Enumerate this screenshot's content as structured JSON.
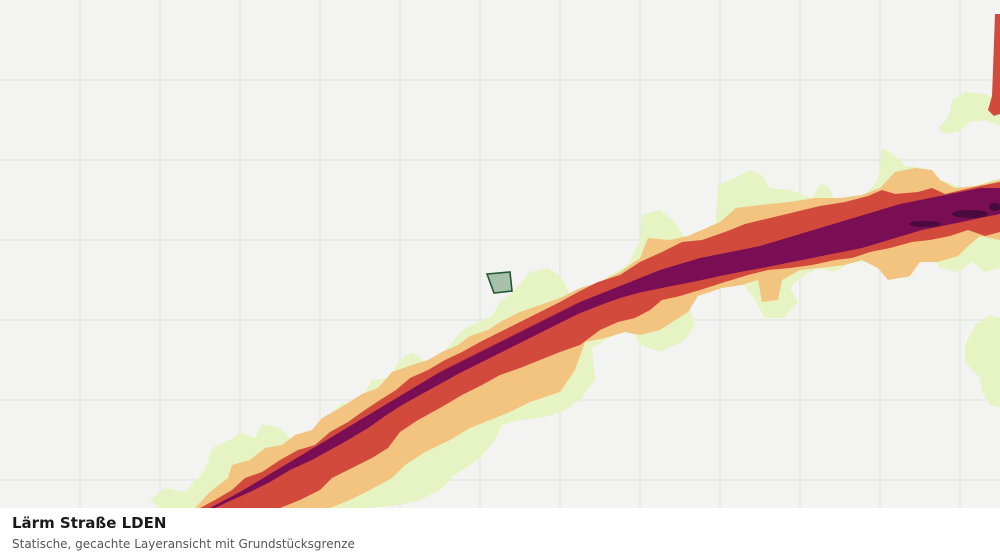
{
  "map": {
    "title": "Lärm Straße LDEN",
    "subtitle": "Statische, gecachte Layeransicht mit Grundstücksgrenze",
    "noise_band_colors": {
      "lowest": "#e6f3c3",
      "low": "#f2c47f",
      "mid": "#d24a3c",
      "high": "#7a0e55",
      "highest": "#4b0a3d"
    },
    "parcel_colors": {
      "fill": "#a7c2a9",
      "stroke": "#1f5a33"
    },
    "background_color": "#f3f4f1",
    "grid_color": "#dedfdc"
  }
}
